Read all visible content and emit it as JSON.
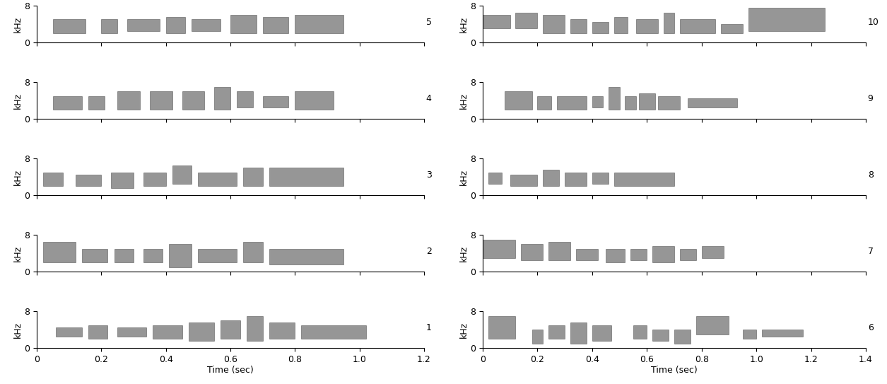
{
  "chart_data": [
    {
      "type": "spectrogram",
      "annotation": "5",
      "ylabel": "kHz",
      "color": "#404040",
      "xlim": [
        0,
        1.2
      ],
      "xticks": [
        0,
        0.2,
        0.4,
        0.6,
        0.8,
        1.0,
        1.2
      ],
      "ylim": [
        0,
        8
      ],
      "yticks": [
        0,
        8
      ],
      "tick_labels": "y",
      "syllables": {
        "start": [
          0.05,
          0.2,
          0.28,
          0.4,
          0.48,
          0.6,
          0.7,
          0.8
        ],
        "end": [
          0.15,
          0.25,
          0.38,
          0.46,
          0.57,
          0.68,
          0.78,
          0.95
        ],
        "low": [
          2,
          2,
          2.5,
          2,
          2.5,
          2,
          2,
          2
        ],
        "high": [
          5,
          5,
          5,
          5.5,
          5,
          6,
          5.5,
          6
        ]
      }
    },
    {
      "type": "spectrogram",
      "annotation": "4",
      "ylabel": "kHz",
      "color": "#404040",
      "xlim": [
        0,
        1.2
      ],
      "xticks": [
        0,
        0.2,
        0.4,
        0.6,
        0.8,
        1.0,
        1.2
      ],
      "ylim": [
        0,
        8
      ],
      "yticks": [
        0,
        8
      ],
      "tick_labels": "y",
      "syllables": {
        "start": [
          0.05,
          0.16,
          0.25,
          0.35,
          0.45,
          0.55,
          0.62,
          0.7,
          0.8
        ],
        "end": [
          0.14,
          0.21,
          0.32,
          0.42,
          0.52,
          0.6,
          0.67,
          0.78,
          0.92
        ],
        "low": [
          2,
          2,
          2,
          2,
          2,
          2,
          2.5,
          2.5,
          2
        ],
        "high": [
          5,
          5,
          6,
          6,
          6,
          7,
          6,
          5,
          6
        ]
      }
    },
    {
      "type": "spectrogram",
      "annotation": "3",
      "ylabel": "kHz",
      "color": "#404040",
      "xlim": [
        0,
        1.2
      ],
      "xticks": [
        0,
        0.2,
        0.4,
        0.6,
        0.8,
        1.0,
        1.2
      ],
      "ylim": [
        0,
        8
      ],
      "yticks": [
        0,
        8
      ],
      "tick_labels": "y",
      "syllables": {
        "start": [
          0.02,
          0.12,
          0.23,
          0.33,
          0.42,
          0.5,
          0.64,
          0.72
        ],
        "end": [
          0.08,
          0.2,
          0.3,
          0.4,
          0.48,
          0.62,
          0.7,
          0.95
        ],
        "low": [
          2,
          2,
          1.5,
          2,
          2.5,
          2,
          2,
          2
        ],
        "high": [
          5,
          4.5,
          5,
          5,
          6.5,
          5,
          6,
          6
        ]
      }
    },
    {
      "type": "spectrogram",
      "annotation": "2",
      "ylabel": "kHz",
      "color": "#404040",
      "xlim": [
        0,
        1.2
      ],
      "xticks": [
        0,
        0.2,
        0.4,
        0.6,
        0.8,
        1.0,
        1.2
      ],
      "ylim": [
        0,
        8
      ],
      "yticks": [
        0,
        8
      ],
      "tick_labels": "y",
      "syllables": {
        "start": [
          0.02,
          0.14,
          0.24,
          0.33,
          0.41,
          0.5,
          0.64,
          0.72
        ],
        "end": [
          0.12,
          0.22,
          0.3,
          0.39,
          0.48,
          0.62,
          0.7,
          0.95
        ],
        "low": [
          2,
          2,
          2,
          2,
          1,
          2,
          2,
          1.5
        ],
        "high": [
          6.5,
          5,
          5,
          5,
          6,
          5,
          6.5,
          5
        ]
      }
    },
    {
      "type": "spectrogram",
      "annotation": "1",
      "ylabel": "kHz",
      "xlabel": "Time (sec)",
      "color": "#404040",
      "xlim": [
        0,
        1.2
      ],
      "xticks": [
        0,
        0.2,
        0.4,
        0.6,
        0.8,
        1.0,
        1.2
      ],
      "ylim": [
        0,
        8
      ],
      "yticks": [
        0,
        8
      ],
      "syllables": {
        "start": [
          0.06,
          0.16,
          0.25,
          0.36,
          0.47,
          0.57,
          0.65,
          0.72,
          0.82
        ],
        "end": [
          0.14,
          0.22,
          0.34,
          0.45,
          0.55,
          0.63,
          0.7,
          0.8,
          1.02
        ],
        "low": [
          2.5,
          2,
          2.5,
          2,
          1.5,
          2,
          1.5,
          2,
          2
        ],
        "high": [
          4.5,
          5,
          4.5,
          5,
          5.5,
          6,
          7,
          5.5,
          5
        ]
      }
    },
    {
      "type": "spectrogram",
      "annotation": "10",
      "ylabel": "kHz",
      "color": "#404040",
      "xlim": [
        0,
        1.4
      ],
      "xticks": [
        0,
        0.2,
        0.4,
        0.6,
        0.8,
        1.0,
        1.2,
        1.4
      ],
      "ylim": [
        0,
        8
      ],
      "yticks": [
        0,
        8
      ],
      "tick_labels": "y",
      "syllables": {
        "start": [
          0.0,
          0.12,
          0.22,
          0.32,
          0.4,
          0.48,
          0.56,
          0.66,
          0.72,
          0.87,
          0.97
        ],
        "end": [
          0.1,
          0.2,
          0.3,
          0.38,
          0.46,
          0.53,
          0.64,
          0.7,
          0.85,
          0.95,
          1.25
        ],
        "low": [
          3,
          3,
          2,
          2,
          2,
          2,
          2,
          2,
          2,
          2,
          2.5
        ],
        "high": [
          6,
          6.5,
          6,
          5,
          4.5,
          5.5,
          5,
          6.5,
          5,
          4,
          7.5
        ]
      }
    },
    {
      "type": "spectrogram",
      "annotation": "9",
      "ylabel": "kHz",
      "color": "#404040",
      "xlim": [
        0,
        1.4
      ],
      "xticks": [
        0,
        0.2,
        0.4,
        0.6,
        0.8,
        1.0,
        1.2,
        1.4
      ],
      "ylim": [
        0,
        8
      ],
      "yticks": [
        0,
        8
      ],
      "tick_labels": "y",
      "syllables": {
        "start": [
          0.08,
          0.2,
          0.27,
          0.4,
          0.46,
          0.52,
          0.57,
          0.64,
          0.75
        ],
        "end": [
          0.18,
          0.25,
          0.38,
          0.44,
          0.5,
          0.56,
          0.63,
          0.72,
          0.93
        ],
        "low": [
          2,
          2,
          2,
          2.5,
          2,
          2,
          2,
          2,
          2.5
        ],
        "high": [
          6,
          5,
          5,
          5,
          7,
          5,
          5.5,
          5,
          4.5
        ]
      }
    },
    {
      "type": "spectrogram",
      "annotation": "8",
      "ylabel": "kHz",
      "color": "#404040",
      "xlim": [
        0,
        1.4
      ],
      "xticks": [
        0,
        0.2,
        0.4,
        0.6,
        0.8,
        1.0,
        1.2,
        1.4
      ],
      "ylim": [
        0,
        8
      ],
      "yticks": [
        0,
        8
      ],
      "tick_labels": "y",
      "syllables": {
        "start": [
          0.02,
          0.1,
          0.22,
          0.3,
          0.4,
          0.48
        ],
        "end": [
          0.07,
          0.2,
          0.28,
          0.38,
          0.46,
          0.7
        ],
        "low": [
          2.5,
          2,
          2,
          2,
          2.5,
          2
        ],
        "high": [
          5,
          4.5,
          5.5,
          5,
          5,
          5
        ]
      }
    },
    {
      "type": "spectrogram",
      "annotation": "7",
      "ylabel": "kHz",
      "color": "#404040",
      "xlim": [
        0,
        1.4
      ],
      "xticks": [
        0,
        0.2,
        0.4,
        0.6,
        0.8,
        1.0,
        1.2,
        1.4
      ],
      "ylim": [
        0,
        8
      ],
      "yticks": [
        0,
        8
      ],
      "tick_labels": "y",
      "syllables": {
        "start": [
          0.0,
          0.14,
          0.24,
          0.34,
          0.45,
          0.54,
          0.62,
          0.72,
          0.8
        ],
        "end": [
          0.12,
          0.22,
          0.32,
          0.42,
          0.52,
          0.6,
          0.7,
          0.78,
          0.88
        ],
        "low": [
          3,
          2.5,
          2.5,
          2.5,
          2,
          2.5,
          2,
          2.5,
          3
        ],
        "high": [
          7,
          6,
          6.5,
          5,
          5,
          5,
          5.5,
          5,
          5.5
        ]
      }
    },
    {
      "type": "spectrogram",
      "annotation": "6",
      "ylabel": "kHz",
      "xlabel": "Time (sec)",
      "color": "#404040",
      "xlim": [
        0,
        1.4
      ],
      "xticks": [
        0,
        0.2,
        0.4,
        0.6,
        0.8,
        1.0,
        1.2,
        1.4
      ],
      "ylim": [
        0,
        8
      ],
      "yticks": [
        0,
        8
      ],
      "syllables": {
        "start": [
          0.02,
          0.18,
          0.24,
          0.32,
          0.4,
          0.55,
          0.62,
          0.7,
          0.78,
          0.95,
          1.02
        ],
        "end": [
          0.12,
          0.22,
          0.3,
          0.38,
          0.47,
          0.6,
          0.68,
          0.76,
          0.9,
          1.0,
          1.17
        ],
        "low": [
          2,
          1,
          2,
          1,
          1.5,
          2,
          1.5,
          1,
          3,
          2,
          2.5
        ],
        "high": [
          7,
          4,
          5,
          5.5,
          5,
          5,
          4,
          4,
          7,
          4,
          4
        ]
      }
    }
  ]
}
